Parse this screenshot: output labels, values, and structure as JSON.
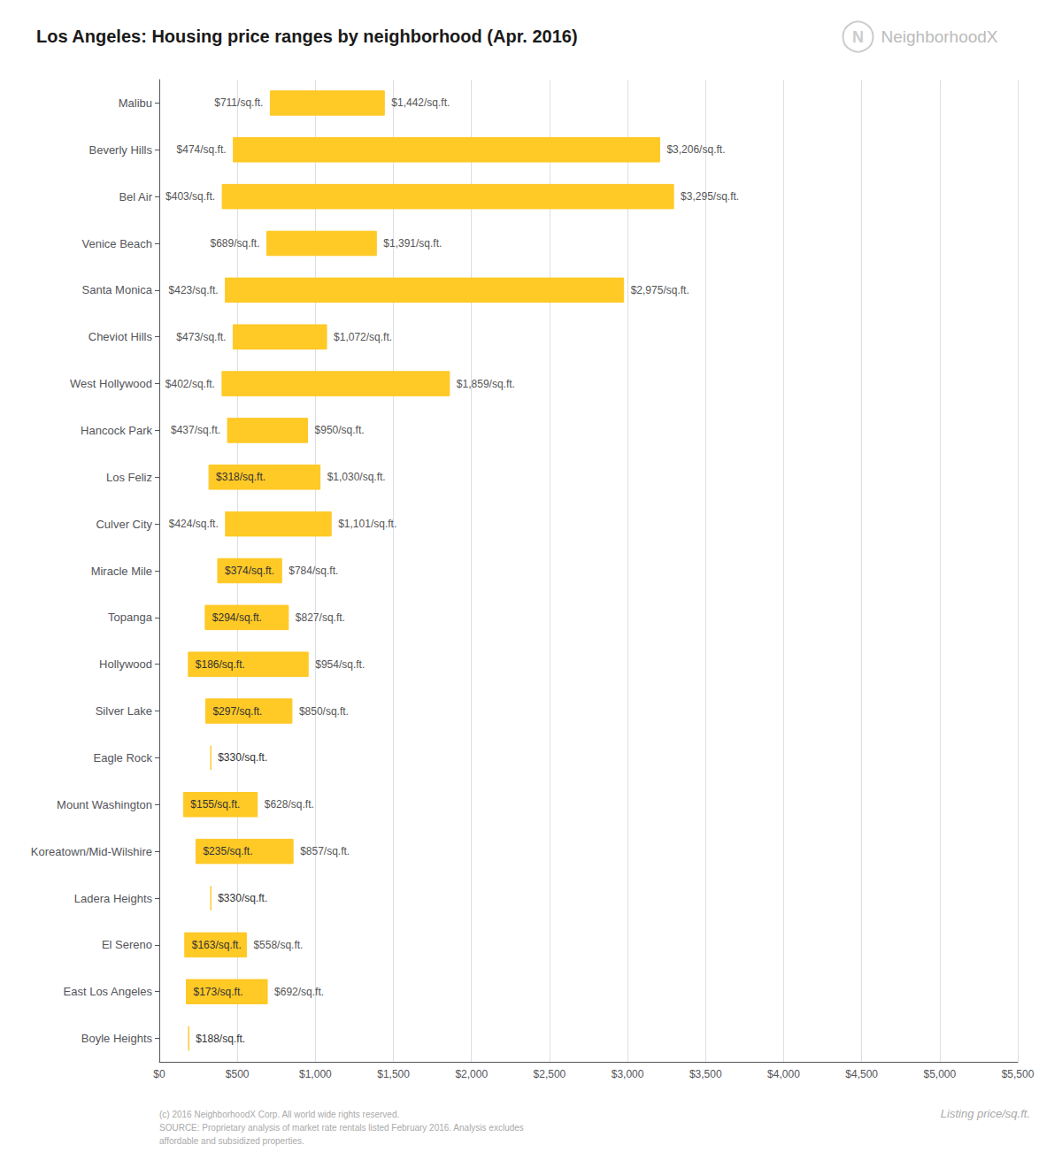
{
  "chart_data": {
    "type": "bar",
    "orientation": "horizontal",
    "title": "Los Angeles: Housing price ranges by neighborhood (Apr. 2016)",
    "xlabel": "Listing price/sq.ft.",
    "annotations": [
      "N",
      "NeighborhoodX",
      "(c) 2016 NeighborhoodX Corp. All world wide rights reserved.\nSOURCE: Proprietary analysis of market rate rentals listed February 2016. Analysis excludes\naffordable and subsidized properties."
    ],
    "categories": [
      "Malibu",
      "Beverly Hills",
      "Bel Air",
      "Venice Beach",
      "Santa Monica",
      "Cheviot Hills",
      "West Hollywood",
      "Hancock Park",
      "Los Feliz",
      "Culver City",
      "Miracle Mile",
      "Topanga",
      "Hollywood",
      "Silver Lake",
      "Eagle Rock",
      "Mount Washington",
      "Koreatown/Mid-Wilshire",
      "Ladera Heights",
      "El Sereno",
      "East Los Angeles",
      "Boyle Heights"
    ],
    "values": [
      [
        711,
        1442
      ],
      [
        474,
        3206
      ],
      [
        403,
        3295
      ],
      [
        689,
        1391
      ],
      [
        423,
        2975
      ],
      [
        473,
        1072
      ],
      [
        402,
        1859
      ],
      [
        437,
        950
      ],
      [
        318,
        1030
      ],
      [
        424,
        1101
      ],
      [
        374,
        784
      ],
      [
        294,
        827
      ],
      [
        186,
        954
      ],
      [
        297,
        850
      ],
      [
        330,
        330
      ],
      [
        155,
        628
      ],
      [
        235,
        857
      ],
      [
        330,
        330
      ],
      [
        163,
        558
      ],
      [
        173,
        692
      ],
      [
        188,
        188
      ]
    ],
    "value_labels": [
      [
        "$711/sq.ft.",
        "$1,442/sq.ft."
      ],
      [
        "$474/sq.ft.",
        "$3,206/sq.ft."
      ],
      [
        "$403/sq.ft.",
        "$3,295/sq.ft."
      ],
      [
        "$689/sq.ft.",
        "$1,391/sq.ft."
      ],
      [
        "$423/sq.ft.",
        "$2,975/sq.ft."
      ],
      [
        "$473/sq.ft.",
        "$1,072/sq.ft."
      ],
      [
        "$402/sq.ft.",
        "$1,859/sq.ft."
      ],
      [
        "$437/sq.ft.",
        "$950/sq.ft."
      ],
      [
        "$318/sq.ft.",
        "$1,030/sq.ft."
      ],
      [
        "$424/sq.ft.",
        "$1,101/sq.ft."
      ],
      [
        "$374/sq.ft.",
        "$784/sq.ft."
      ],
      [
        "$294/sq.ft.",
        "$827/sq.ft."
      ],
      [
        "$186/sq.ft.",
        "$954/sq.ft."
      ],
      [
        "$297/sq.ft.",
        "$850/sq.ft."
      ],
      [
        "$330/sq.ft.",
        null
      ],
      [
        "$155/sq.ft.",
        "$628/sq.ft."
      ],
      [
        "$235/sq.ft.",
        "$857/sq.ft."
      ],
      [
        "$330/sq.ft.",
        null
      ],
      [
        "$163/sq.ft.",
        "$558/sq.ft."
      ],
      [
        "$173/sq.ft.",
        "$692/sq.ft."
      ],
      [
        "$188/sq.ft.",
        null
      ]
    ],
    "color": "#FFC926",
    "data_labels": true,
    "grid": true,
    "xlim": [
      0,
      5500
    ],
    "xticks": [
      {
        "value": 0,
        "label": "$0"
      },
      {
        "value": 500,
        "label": "$500"
      },
      {
        "value": 1000,
        "label": "$1,000"
      },
      {
        "value": 1500,
        "label": "$1,500"
      },
      {
        "value": 2000,
        "label": "$2,000"
      },
      {
        "value": 2500,
        "label": "$2,500"
      },
      {
        "value": 3000,
        "label": "$3,000"
      },
      {
        "value": 3500,
        "label": "$3,500"
      },
      {
        "value": 4000,
        "label": "$4,000"
      },
      {
        "value": 4500,
        "label": "$4,500"
      },
      {
        "value": 5000,
        "label": "$5,000"
      },
      {
        "value": 5500,
        "label": "$5,500"
      }
    ]
  }
}
